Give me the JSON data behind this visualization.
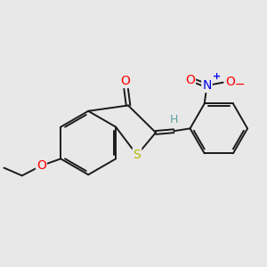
{
  "bg_color": "#e8e8e8",
  "bond_color": "#1a1a1a",
  "bond_width": 1.4,
  "atom_colors": {
    "O": "#ff0000",
    "S": "#b8b800",
    "N": "#0000ee",
    "H": "#5fa0a0",
    "C": "#1a1a1a"
  },
  "figsize": [
    3.0,
    3.0
  ],
  "dpi": 100
}
